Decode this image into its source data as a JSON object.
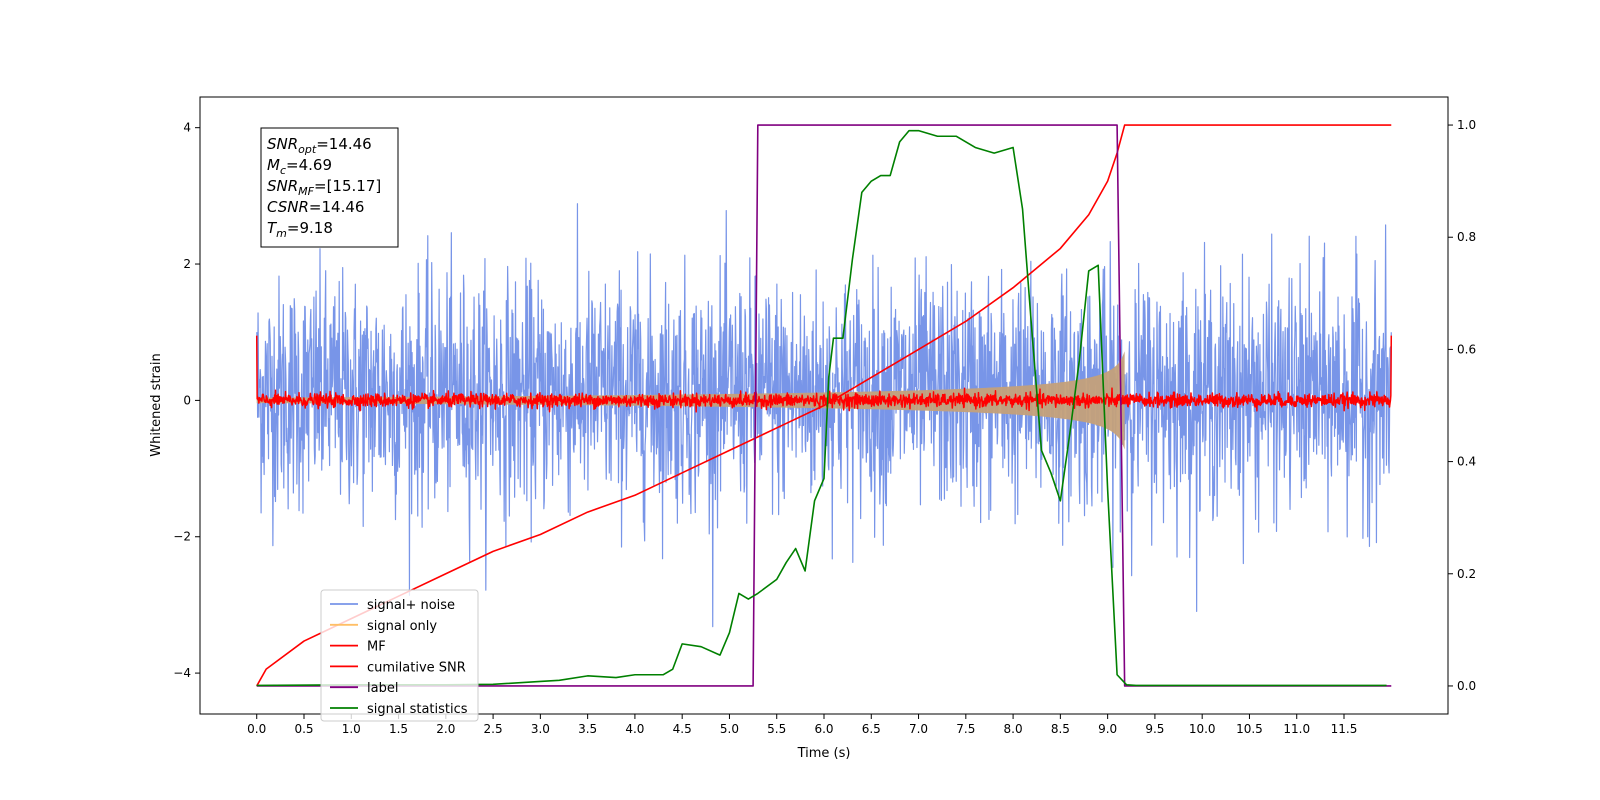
{
  "chart_data": {
    "type": "line",
    "xlabel": "Time (s)",
    "ylabel": "Whitened strain",
    "xlim": [
      -0.6,
      12.6
    ],
    "ylim": [
      -4.6,
      4.45
    ],
    "y2lim": [
      -0.05,
      1.05
    ],
    "xticks": [
      "0.0",
      "0.5",
      "1.0",
      "1.5",
      "2.0",
      "2.5",
      "3.0",
      "3.5",
      "4.0",
      "4.5",
      "5.0",
      "5.5",
      "6.0",
      "6.5",
      "7.0",
      "7.5",
      "8.0",
      "8.5",
      "9.0",
      "9.5",
      "10.0",
      "10.5",
      "11.0",
      "11.5"
    ],
    "yticks": [
      "4",
      "2",
      "0",
      "−2",
      "−4"
    ],
    "y2ticks": [
      "1.0",
      "0.8",
      "0.6",
      "0.4",
      "0.2",
      "0.0"
    ],
    "legend_position": "lower-left",
    "annotation": [
      {
        "sym": "SNR",
        "sub": "opt",
        "value": "=14.46"
      },
      {
        "sym": "M",
        "sub": "c",
        "value": "=4.69"
      },
      {
        "sym": "SNR",
        "sub": "MF",
        "value": "=[15.17]"
      },
      {
        "sym": "CSNR",
        "sub": "",
        "value": "=14.46"
      },
      {
        "sym": "T",
        "sub": "m",
        "value": "=9.18"
      }
    ],
    "merger_time": 9.18,
    "label_window": [
      5.3,
      9.15
    ],
    "series": [
      {
        "name": "signal+ noise",
        "color": "#7895e8",
        "axis": "left",
        "kind": "noise",
        "sigma": 0.85,
        "range": [
          0.0,
          12.0
        ]
      },
      {
        "name": "signal only",
        "color": "#ffbf66",
        "fill": "#c4a07a",
        "axis": "left",
        "kind": "chirp_envelope",
        "amp_start": 0.04,
        "amp_end": 0.72
      },
      {
        "name": "MF",
        "color": "#ff0000",
        "axis": "left",
        "kind": "noise",
        "sigma": 0.05,
        "range": [
          0.0,
          12.0
        ]
      },
      {
        "name": "cumilative SNR",
        "color": "#ff0000",
        "axis": "right",
        "kind": "line",
        "x": [
          0.0,
          0.1,
          0.5,
          1.0,
          1.5,
          2.0,
          2.5,
          3.0,
          3.5,
          4.0,
          4.5,
          5.0,
          5.5,
          6.0,
          6.5,
          7.0,
          7.5,
          8.0,
          8.5,
          8.8,
          9.0,
          9.1,
          9.18,
          9.5,
          10.0,
          11.0,
          12.0
        ],
        "y": [
          0.0,
          0.03,
          0.08,
          0.12,
          0.16,
          0.2,
          0.24,
          0.27,
          0.31,
          0.34,
          0.38,
          0.42,
          0.46,
          0.5,
          0.55,
          0.6,
          0.65,
          0.71,
          0.78,
          0.84,
          0.9,
          0.95,
          1.0,
          1.0,
          1.0,
          1.0,
          1.0
        ]
      },
      {
        "name": "label",
        "color": "#800080",
        "axis": "right",
        "kind": "line",
        "x": [
          0.0,
          5.25,
          5.3,
          9.1,
          9.18,
          12.0
        ],
        "y": [
          0.0,
          0.0,
          1.0,
          1.0,
          0.0,
          0.0
        ]
      },
      {
        "name": "signal statistics",
        "color": "#008000",
        "axis": "right",
        "kind": "line",
        "x": [
          0.0,
          1.0,
          2.0,
          2.5,
          3.0,
          3.2,
          3.5,
          3.8,
          4.0,
          4.3,
          4.4,
          4.5,
          4.7,
          4.9,
          5.0,
          5.1,
          5.2,
          5.3,
          5.5,
          5.6,
          5.7,
          5.8,
          5.9,
          6.0,
          6.05,
          6.1,
          6.2,
          6.3,
          6.4,
          6.5,
          6.6,
          6.7,
          6.8,
          6.9,
          7.0,
          7.2,
          7.4,
          7.6,
          7.8,
          8.0,
          8.1,
          8.2,
          8.3,
          8.4,
          8.5,
          8.6,
          8.7,
          8.8,
          8.9,
          9.0,
          9.1,
          9.2,
          9.3,
          9.5,
          10.0,
          11.0,
          11.95
        ],
        "y": [
          0.001,
          0.002,
          0.002,
          0.003,
          0.008,
          0.01,
          0.018,
          0.015,
          0.02,
          0.02,
          0.03,
          0.075,
          0.07,
          0.055,
          0.095,
          0.165,
          0.155,
          0.165,
          0.19,
          0.22,
          0.245,
          0.205,
          0.33,
          0.37,
          0.55,
          0.62,
          0.62,
          0.76,
          0.88,
          0.9,
          0.91,
          0.91,
          0.97,
          0.99,
          0.99,
          0.98,
          0.98,
          0.96,
          0.95,
          0.96,
          0.85,
          0.63,
          0.42,
          0.38,
          0.33,
          0.45,
          0.58,
          0.74,
          0.75,
          0.35,
          0.02,
          0.002,
          0.001,
          0.001,
          0.001,
          0.001,
          0.001
        ]
      }
    ]
  }
}
